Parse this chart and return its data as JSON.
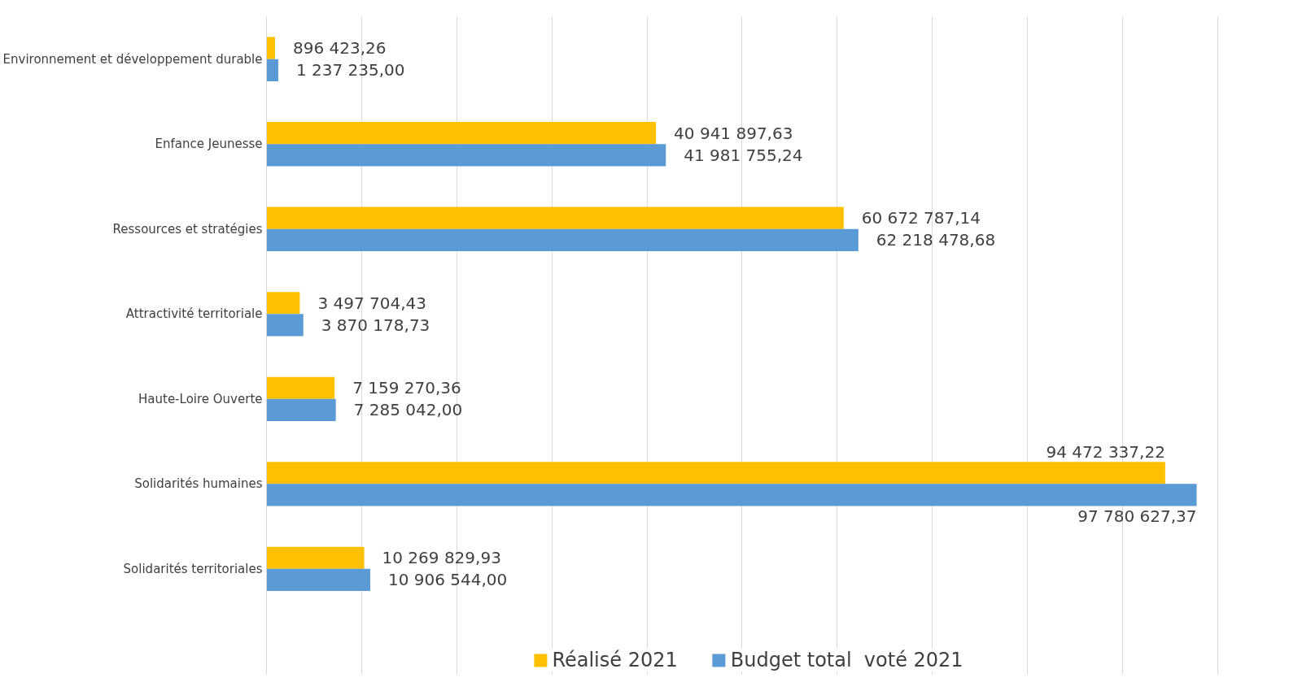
{
  "chart_data": {
    "type": "bar",
    "orientation": "horizontal",
    "categories": [
      "Environnement et développement durable",
      "Enfance Jeunesse",
      "Ressources et stratégies",
      "Attractivité territoriale",
      "Haute-Loire Ouverte",
      "Solidarités humaines",
      "Solidarités territoriales"
    ],
    "series": [
      {
        "name": "Réalisé 2021",
        "color": "#ffc000",
        "values": [
          896423.26,
          40941897.63,
          60672787.14,
          3497704.43,
          7159270.36,
          94472337.22,
          10269829.93
        ],
        "value_labels": [
          "896 423,26",
          "40 941 897,63",
          "60 672 787,14",
          "3 497 704,43",
          "7 159 270,36",
          "94 472 337,22",
          "10 269 829,93"
        ]
      },
      {
        "name": "Budget total  voté 2021",
        "color": "#5b9bd5",
        "values": [
          1237235.0,
          41981755.24,
          62218478.68,
          3870178.73,
          7285042.0,
          97780627.37,
          10906544.0
        ],
        "value_labels": [
          "1 237 235,00",
          "41 981 755,24",
          "62 218 478,68",
          "3 870 178,73",
          "7 285 042,00",
          "97 780 627,37",
          "10 906 544,00"
        ]
      }
    ],
    "xticks": [
      {
        "value": 0,
        "label": null
      },
      {
        "value": 10000000,
        "label": null
      },
      {
        "value": 20000000,
        "label": null
      },
      {
        "value": 30000000,
        "label": null
      },
      {
        "value": 40000000,
        "label": null
      },
      {
        "value": 50000000,
        "label": null
      },
      {
        "value": 60000000,
        "label": null
      },
      {
        "value": 70000000,
        "label": null
      },
      {
        "value": 80000000,
        "label": null
      },
      {
        "value": 90000000,
        "label": null
      },
      {
        "value": 100000000,
        "label": null
      }
    ],
    "grid": "x",
    "legend": "bottom",
    "tick_labels": "y"
  }
}
